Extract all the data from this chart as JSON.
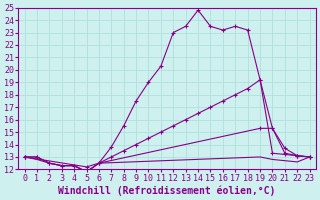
{
  "xlabel": "Windchill (Refroidissement éolien,°C)",
  "background_color": "#cef0ee",
  "line_color": "#880088",
  "xlim": [
    -0.5,
    23.5
  ],
  "ylim": [
    12,
    25
  ],
  "xticks": [
    0,
    1,
    2,
    3,
    4,
    5,
    6,
    7,
    8,
    9,
    10,
    11,
    12,
    13,
    14,
    15,
    16,
    17,
    18,
    19,
    20,
    21,
    22,
    23
  ],
  "yticks": [
    12,
    13,
    14,
    15,
    16,
    17,
    18,
    19,
    20,
    21,
    22,
    23,
    24,
    25
  ],
  "curve_upper": {
    "x": [
      0,
      1,
      2,
      3,
      4,
      5,
      6,
      7,
      8,
      9,
      10,
      11,
      12,
      13,
      14,
      15,
      16,
      17,
      18,
      19,
      20,
      21,
      22,
      23
    ],
    "y": [
      13,
      13,
      12.5,
      12.3,
      12.3,
      11.8,
      12.5,
      13.8,
      15.5,
      17.5,
      19.0,
      20.3,
      23.0,
      23.5,
      24.8,
      23.5,
      23.2,
      23.5,
      23.2,
      19.2,
      15.3,
      13.7,
      13.1,
      13.0
    ],
    "has_markers": true
  },
  "curve_mid": {
    "x": [
      0,
      1,
      2,
      3,
      4,
      5,
      6,
      7,
      8,
      9,
      10,
      11,
      12,
      13,
      14,
      15,
      16,
      17,
      18,
      19,
      20,
      21,
      22,
      23
    ],
    "y": [
      13,
      13,
      12.5,
      12.3,
      12.3,
      11.8,
      12.5,
      13.0,
      13.5,
      14.0,
      14.5,
      15.0,
      15.5,
      16.0,
      16.5,
      17.0,
      17.5,
      18.0,
      18.5,
      19.2,
      13.3,
      13.2,
      13.1,
      13.0
    ],
    "has_markers": true
  },
  "curve_low1": {
    "x": [
      0,
      5,
      6,
      19,
      20,
      21,
      22,
      23
    ],
    "y": [
      13,
      12.2,
      12.5,
      15.3,
      15.3,
      13.3,
      13.1,
      13.0
    ],
    "has_markers": true
  },
  "curve_low2": {
    "x": [
      0,
      1,
      2,
      3,
      4,
      5,
      6,
      19,
      20,
      21,
      22,
      23
    ],
    "y": [
      13,
      12.8,
      12.5,
      12.3,
      12.3,
      11.8,
      12.5,
      13.0,
      12.8,
      12.7,
      12.6,
      13.0
    ],
    "has_markers": false
  },
  "grid_color": "#aaddd8",
  "tick_fontsize": 6,
  "xlabel_fontsize": 7
}
